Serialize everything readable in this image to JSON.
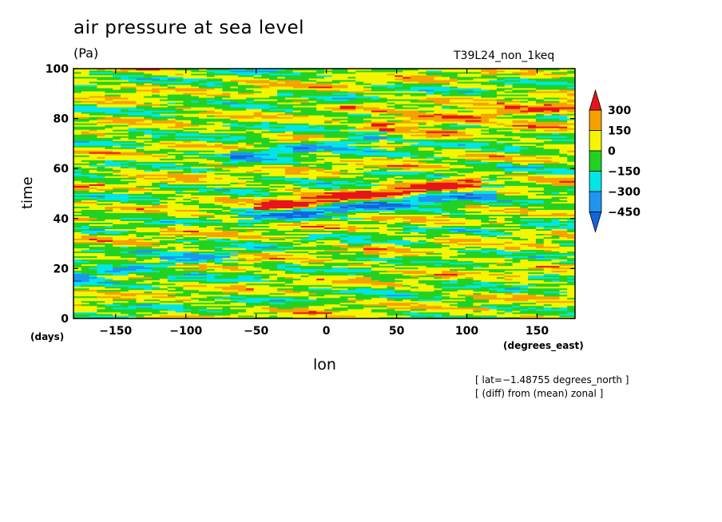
{
  "chart_data": {
    "type": "heatmap",
    "title": "air pressure at sea level",
    "units": "(Pa)",
    "run_label": "T39L24_non_1keq",
    "xlabel": "lon",
    "ylabel": "time",
    "x_unit": "(degrees_east)",
    "y_unit": "(days)",
    "xlim": [
      -180,
      177
    ],
    "ylim": [
      0,
      100
    ],
    "x_ticks": [
      -150,
      -100,
      -50,
      0,
      50,
      100,
      150
    ],
    "x_tick_labels": [
      "−150",
      "−100",
      "−50",
      "0",
      "50",
      "100",
      "150"
    ],
    "y_ticks": [
      0,
      20,
      40,
      60,
      80,
      100
    ],
    "y_tick_labels": [
      "0",
      "20",
      "40",
      "60",
      "80",
      "100"
    ],
    "notes": [
      "[ lat=−1.48755 degrees_north ]",
      "[ (diff) from (mean) zonal ]"
    ],
    "colorbar": {
      "levels": [
        300,
        150,
        0,
        -150,
        -300,
        -450
      ],
      "level_labels": [
        "300",
        "150",
        "0",
        "−150",
        "−300",
        "−450"
      ],
      "colors": [
        "#e8141c",
        "#f5a200",
        "#f5f500",
        "#22d222",
        "#00e6e6",
        "#1e96f0",
        "#1464dc"
      ]
    },
    "features": [
      {
        "name": "negative band",
        "from": [
          -180,
          17
        ],
        "to": [
          -80,
          25
        ]
      },
      {
        "name": "negative band",
        "from": [
          -50,
          40
        ],
        "to": [
          110,
          50
        ]
      },
      {
        "name": "positive band",
        "from": [
          -40,
          45
        ],
        "to": [
          100,
          55
        ]
      },
      {
        "name": "negative band",
        "from": [
          -60,
          65
        ],
        "to": [
          30,
          72
        ]
      },
      {
        "name": "positive band",
        "from": [
          40,
          78
        ],
        "to": [
          177,
          85
        ]
      }
    ]
  }
}
